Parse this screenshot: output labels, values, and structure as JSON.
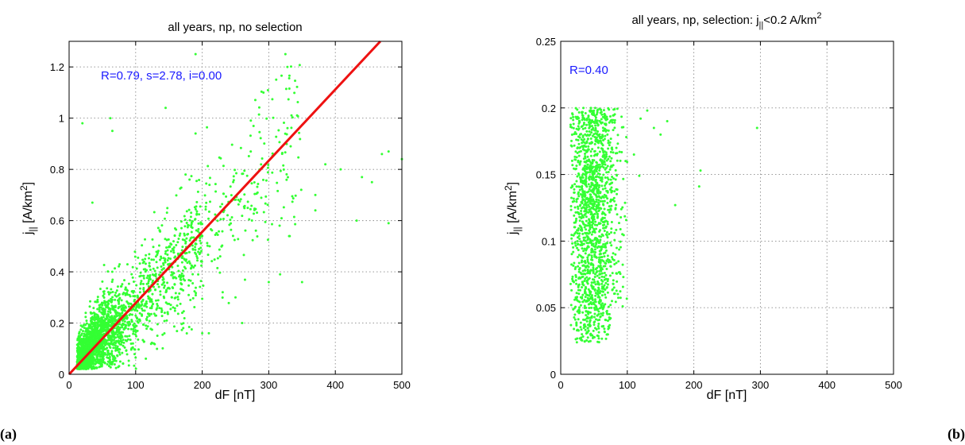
{
  "chart_data": [
    {
      "type": "scatter",
      "title": "all years, np, no selection",
      "xlabel": "dF [nT]",
      "ylabel": "j|| [A/km2]",
      "xlim": [
        0,
        500
      ],
      "ylim": [
        0,
        1.3
      ],
      "xticks": [
        "0",
        "100",
        "200",
        "300",
        "400",
        "500"
      ],
      "yticks": [
        "0",
        "0.2",
        "0.4",
        "0.6",
        "0.8",
        "1",
        "1.2"
      ],
      "grid": true,
      "annotation": "R=0.79, s=2.78, i=0.00",
      "panel_label": "(a)",
      "point_color": "#33ff33",
      "fit_line": {
        "color": "#ee1111",
        "slope_per_100nT": 0.278,
        "intercept": 0.0
      },
      "point_cloud": {
        "x_range": [
          10,
          500
        ],
        "y_range": [
          0,
          1.25
        ],
        "approx_count": 2500
      },
      "outliers": [
        {
          "x": 20,
          "y": 0.98
        },
        {
          "x": 62,
          "y": 1.0
        },
        {
          "x": 65,
          "y": 0.95
        },
        {
          "x": 145,
          "y": 1.04
        },
        {
          "x": 190,
          "y": 1.25
        },
        {
          "x": 325,
          "y": 1.25
        },
        {
          "x": 328,
          "y": 1.2
        },
        {
          "x": 292,
          "y": 1.1
        },
        {
          "x": 480,
          "y": 0.87
        },
        {
          "x": 470,
          "y": 0.86
        },
        {
          "x": 500,
          "y": 0.84
        },
        {
          "x": 455,
          "y": 0.75
        },
        {
          "x": 408,
          "y": 0.8
        },
        {
          "x": 385,
          "y": 0.82
        },
        {
          "x": 440,
          "y": 0.77
        },
        {
          "x": 480,
          "y": 0.59
        },
        {
          "x": 432,
          "y": 0.6
        },
        {
          "x": 370,
          "y": 0.64
        },
        {
          "x": 370,
          "y": 0.7
        },
        {
          "x": 350,
          "y": 0.36
        },
        {
          "x": 317,
          "y": 0.39
        },
        {
          "x": 300,
          "y": 0.36
        },
        {
          "x": 210,
          "y": 0.16
        },
        {
          "x": 200,
          "y": 0.16
        },
        {
          "x": 250,
          "y": 0.3
        },
        {
          "x": 260,
          "y": 0.2
        },
        {
          "x": 170,
          "y": 0.24
        },
        {
          "x": 190,
          "y": 0.94
        },
        {
          "x": 175,
          "y": 0.78
        },
        {
          "x": 35,
          "y": 0.67
        }
      ]
    },
    {
      "type": "scatter",
      "title": "all years, np, selection: j||<0.2 A/km2",
      "xlabel": "dF [nT]",
      "ylabel": "j|| [A/km2]",
      "xlim": [
        0,
        500
      ],
      "ylim": [
        0,
        0.25
      ],
      "xticks": [
        "0",
        "100",
        "200",
        "300",
        "400",
        "500"
      ],
      "yticks": [
        "0",
        "0.05",
        "0.1",
        "0.15",
        "0.2",
        "0.25"
      ],
      "grid": true,
      "annotation": "R=0.40",
      "panel_label": "(b)",
      "point_color": "#33ff33",
      "point_cloud": {
        "x_range": [
          10,
          100
        ],
        "y_range": [
          0.023,
          0.2
        ],
        "approx_count": 1500
      },
      "outliers": [
        {
          "x": 295,
          "y": 0.185
        },
        {
          "x": 210,
          "y": 0.153
        },
        {
          "x": 208,
          "y": 0.141
        },
        {
          "x": 172,
          "y": 0.127
        },
        {
          "x": 160,
          "y": 0.19
        },
        {
          "x": 140,
          "y": 0.185
        },
        {
          "x": 150,
          "y": 0.18
        },
        {
          "x": 120,
          "y": 0.192
        },
        {
          "x": 130,
          "y": 0.198
        },
        {
          "x": 118,
          "y": 0.149
        },
        {
          "x": 110,
          "y": 0.165
        }
      ]
    }
  ],
  "labels": {
    "a": {
      "title": "all years, np, no selection",
      "annotation": "R=0.79, s=2.78, i=0.00",
      "xlabel": "dF [nT]",
      "ylabel_j": "j",
      "ylabel_sub": "||",
      "ylabel_unit": " [A/km",
      "ylabel_sup": "2",
      "ylabel_close": "]",
      "panel": "(a)"
    },
    "b": {
      "title_pre": "all years, np, selection: j",
      "title_sub": "||",
      "title_mid": "<0.2 A/km",
      "title_sup": "2",
      "annotation": "R=0.40",
      "xlabel": "dF [nT]",
      "ylabel_j": "j",
      "ylabel_sub": "||",
      "ylabel_unit": " [A/km",
      "ylabel_sup": "2",
      "ylabel_close": "]",
      "panel": "(b)"
    }
  }
}
